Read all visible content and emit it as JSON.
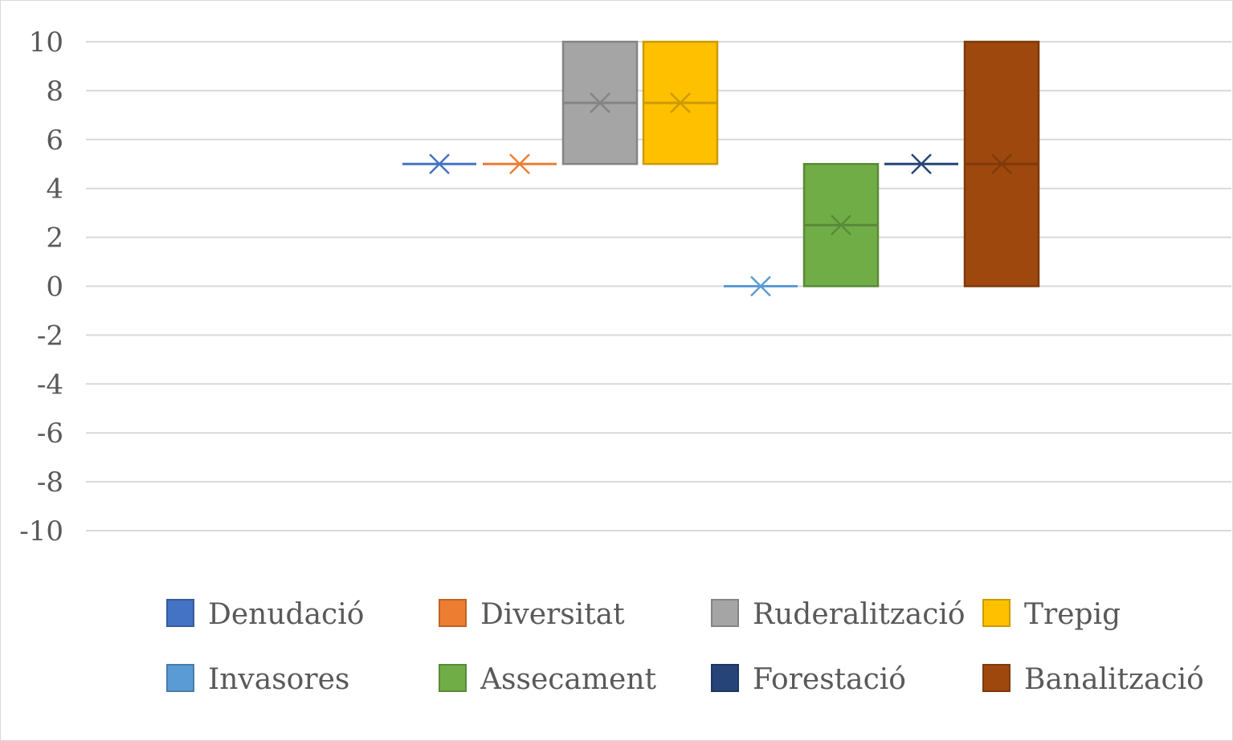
{
  "chart_data": {
    "type": "boxplot",
    "title": "",
    "xlabel": "",
    "ylabel": "",
    "ylim": [
      -10,
      10
    ],
    "yticks": [
      10,
      8,
      6,
      4,
      2,
      0,
      -2,
      -4,
      -6,
      -8,
      -10
    ],
    "grid": true,
    "legend_position": "bottom",
    "series": [
      {
        "name": "Denudació",
        "color": "#4472c4",
        "min": 5,
        "q1": 5,
        "median": 5,
        "q3": 5,
        "max": 5,
        "mean": 5
      },
      {
        "name": "Diversitat",
        "color": "#ed7d31",
        "min": 5,
        "q1": 5,
        "median": 5,
        "q3": 5,
        "max": 5,
        "mean": 5
      },
      {
        "name": "Ruderalització",
        "color": "#a5a5a5",
        "min": 5,
        "q1": 5,
        "median": 7.5,
        "q3": 10,
        "max": 10,
        "mean": 7.5
      },
      {
        "name": "Trepig",
        "color": "#ffc000",
        "min": 5,
        "q1": 5,
        "median": 7.5,
        "q3": 10,
        "max": 10,
        "mean": 7.5
      },
      {
        "name": "Invasores",
        "color": "#5b9bd5",
        "min": 0,
        "q1": 0,
        "median": 0,
        "q3": 0,
        "max": 0,
        "mean": 0
      },
      {
        "name": "Assecament",
        "color": "#70ad47",
        "min": 0,
        "q1": 0,
        "median": 2.5,
        "q3": 5,
        "max": 5,
        "mean": 2.5
      },
      {
        "name": "Forestació",
        "color": "#264478",
        "min": 5,
        "q1": 5,
        "median": 5,
        "q3": 5,
        "max": 5,
        "mean": 5
      },
      {
        "name": "Banalització",
        "color": "#9e480e",
        "min": 0,
        "q1": 0,
        "median": 5,
        "q3": 10,
        "max": 10,
        "mean": 5
      }
    ]
  }
}
